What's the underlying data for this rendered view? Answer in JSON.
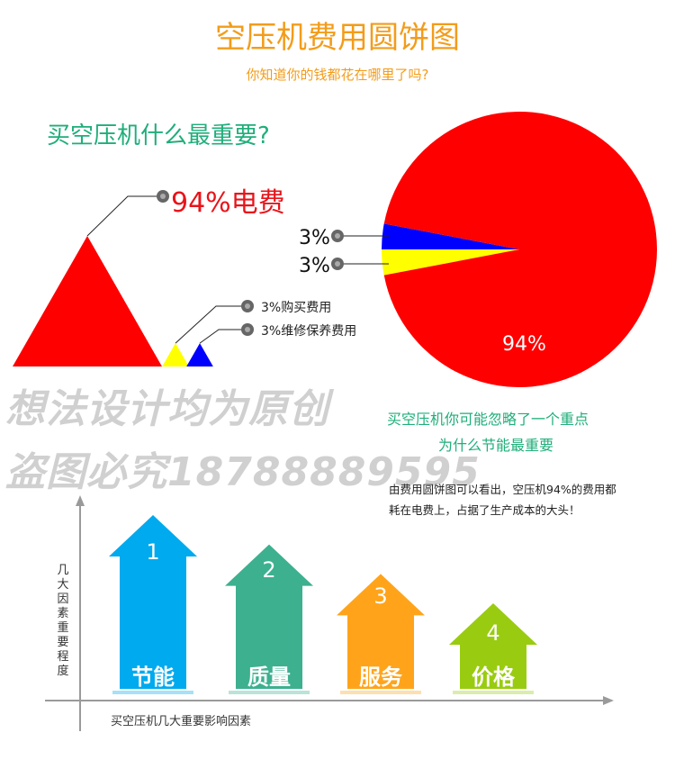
{
  "title": "空压机费用圆饼图",
  "subtitle": "你知道你的钱都花在哪里了吗?",
  "question_1": "买空压机什么最重要?",
  "watermark": {
    "line1": "想法设计均为原创",
    "line2": "盗图必究18788889595"
  },
  "question_2": {
    "line1": "买空压机你可能忽略了一个重点",
    "line2": "为什么节能最重要"
  },
  "explanation": "由费用圆饼图可以看出，空压机94%的费用都耗在电费上，占据了生产成本的大头！",
  "colors": {
    "electricity": "#ff0000",
    "purchase": "#ffff00",
    "maintenance": "#0000ff",
    "accent": "#f39c1a",
    "green_text": "#1fae7a"
  },
  "chart_data": [
    {
      "type": "bar",
      "title": "",
      "categories": [
        "电费",
        "购买费用",
        "维修保养费用"
      ],
      "values": [
        94,
        3,
        3
      ],
      "labels": [
        "94%电费",
        "3%购买费用",
        "3%维修保养费用"
      ],
      "colors": [
        "#ff0000",
        "#ffff00",
        "#0000ff"
      ]
    },
    {
      "type": "pie",
      "title": "",
      "categories": [
        "电费",
        "购买费用",
        "维修保养费用"
      ],
      "values": [
        94,
        3,
        3
      ],
      "labels": [
        "94%",
        "3%",
        "3%"
      ],
      "colors": [
        "#ff0000",
        "#ffff00",
        "#0000ff"
      ]
    },
    {
      "type": "bar",
      "title": "",
      "xlabel": "买空压机几大重要影响因素",
      "ylabel": "几大因素重要程度",
      "categories": [
        "节能",
        "质量",
        "服务",
        "价格"
      ],
      "ranks": [
        "1",
        "2",
        "3",
        "4"
      ],
      "values": [
        4,
        3,
        2,
        1
      ],
      "colors": [
        "#00aaee",
        "#3db08f",
        "#ffa41a",
        "#99cc10"
      ]
    }
  ]
}
